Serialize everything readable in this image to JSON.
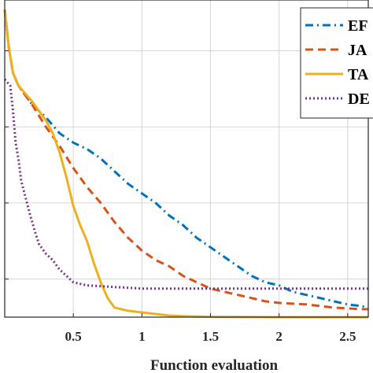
{
  "chart_data": {
    "type": "line",
    "xlabel": "Function evaluation",
    "ylabel": "",
    "title": "",
    "x_ticks": [
      "0.5",
      "1",
      "1.5",
      "2",
      "2.5"
    ],
    "x_tick_values": [
      0.5,
      1,
      1.5,
      2,
      2.5
    ],
    "xlim": [
      0,
      2.65
    ],
    "ylim": [
      0,
      1
    ],
    "grid": true,
    "legend": "top-right",
    "series": [
      {
        "name": "EF",
        "color": "#0072BD",
        "style": "dashdot",
        "x": [
          0,
          0.03,
          0.06,
          0.1,
          0.15,
          0.2,
          0.3,
          0.4,
          0.5,
          0.6,
          0.7,
          0.8,
          0.9,
          1.0,
          1.1,
          1.2,
          1.3,
          1.4,
          1.5,
          1.6,
          1.7,
          1.8,
          1.9,
          2.0,
          2.1,
          2.2,
          2.3,
          2.4,
          2.5,
          2.6,
          2.65
        ],
        "y": [
          0.97,
          0.85,
          0.77,
          0.73,
          0.7,
          0.67,
          0.63,
          0.58,
          0.55,
          0.53,
          0.5,
          0.46,
          0.42,
          0.39,
          0.36,
          0.32,
          0.29,
          0.25,
          0.22,
          0.19,
          0.16,
          0.13,
          0.11,
          0.1,
          0.08,
          0.07,
          0.06,
          0.05,
          0.04,
          0.035,
          0.03
        ]
      },
      {
        "name": "JA",
        "color": "#D95319",
        "style": "dashed",
        "x": [
          0,
          0.03,
          0.06,
          0.1,
          0.2,
          0.3,
          0.4,
          0.5,
          0.6,
          0.7,
          0.8,
          0.9,
          1.0,
          1.1,
          1.2,
          1.3,
          1.4,
          1.5,
          1.6,
          1.7,
          1.8,
          1.9,
          2.0,
          2.2,
          2.4,
          2.6,
          2.65
        ],
        "y": [
          0.97,
          0.85,
          0.77,
          0.73,
          0.67,
          0.6,
          0.54,
          0.47,
          0.41,
          0.36,
          0.3,
          0.25,
          0.21,
          0.18,
          0.16,
          0.13,
          0.11,
          0.09,
          0.08,
          0.07,
          0.06,
          0.05,
          0.045,
          0.04,
          0.03,
          0.025,
          0.025
        ]
      },
      {
        "name": "TA",
        "color": "#EDB120",
        "style": "solid",
        "x": [
          0,
          0.03,
          0.06,
          0.1,
          0.2,
          0.3,
          0.35,
          0.4,
          0.45,
          0.5,
          0.55,
          0.6,
          0.65,
          0.7,
          0.75,
          0.8,
          0.85,
          0.9,
          1.0,
          1.1,
          1.2,
          1.3,
          1.4,
          1.5,
          2.0,
          2.65
        ],
        "y": [
          0.97,
          0.85,
          0.77,
          0.73,
          0.68,
          0.62,
          0.58,
          0.52,
          0.44,
          0.35,
          0.29,
          0.24,
          0.17,
          0.11,
          0.06,
          0.03,
          0.025,
          0.02,
          0.015,
          0.01,
          0.005,
          0.003,
          0.002,
          0.001,
          0.0,
          0.0
        ]
      },
      {
        "name": "DE",
        "color": "#7E2F8E",
        "style": "dotted",
        "x": [
          0,
          0.04,
          0.06,
          0.08,
          0.1,
          0.12,
          0.15,
          0.18,
          0.2,
          0.22,
          0.25,
          0.3,
          0.35,
          0.4,
          0.45,
          0.5,
          0.6,
          0.8,
          1.0,
          1.5,
          2.0,
          2.5,
          2.65
        ],
        "y": [
          0.75,
          0.73,
          0.65,
          0.55,
          0.5,
          0.43,
          0.38,
          0.33,
          0.3,
          0.27,
          0.23,
          0.2,
          0.18,
          0.15,
          0.13,
          0.11,
          0.1,
          0.095,
          0.09,
          0.09,
          0.09,
          0.09,
          0.09
        ]
      }
    ]
  }
}
